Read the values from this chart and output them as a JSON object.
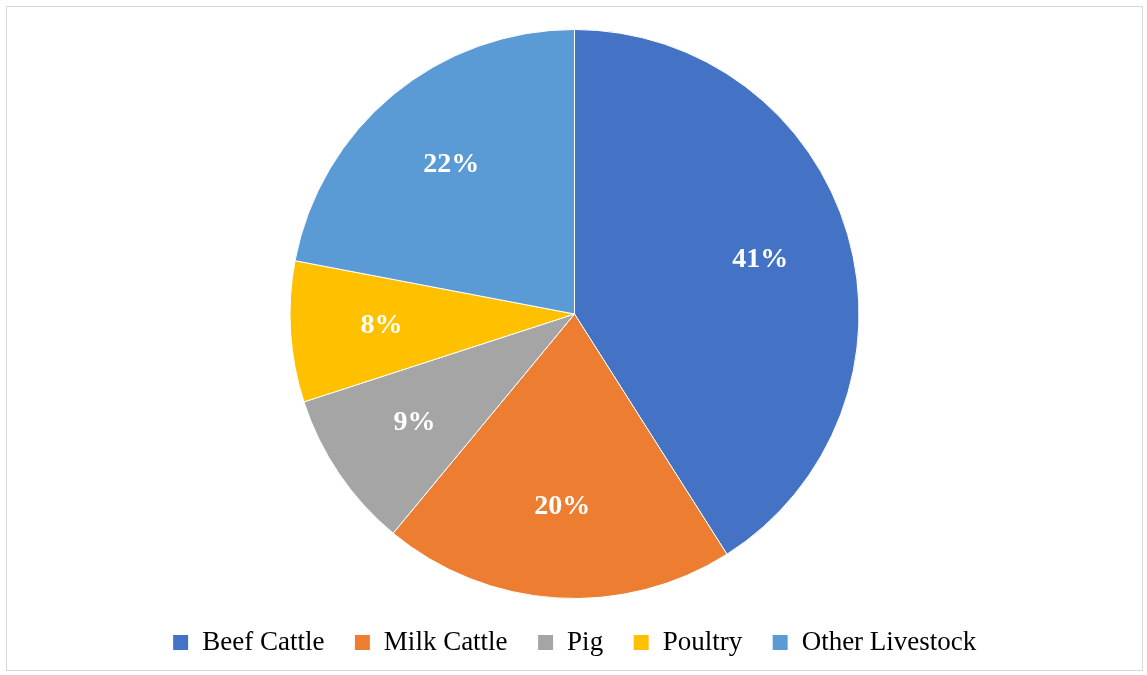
{
  "chart_data": {
    "type": "pie",
    "categories": [
      "Beef Cattle",
      "Milk Cattle",
      "Pig",
      "Poultry",
      "Other Livestock"
    ],
    "values": [
      41,
      20,
      9,
      8,
      22
    ],
    "colors": [
      "#4472c4",
      "#ed7d31",
      "#a5a5a5",
      "#ffc000",
      "#5b9bd5"
    ],
    "value_labels": [
      "41%",
      "20%",
      "9%",
      "8%",
      "22%"
    ],
    "legend": "bottom"
  }
}
